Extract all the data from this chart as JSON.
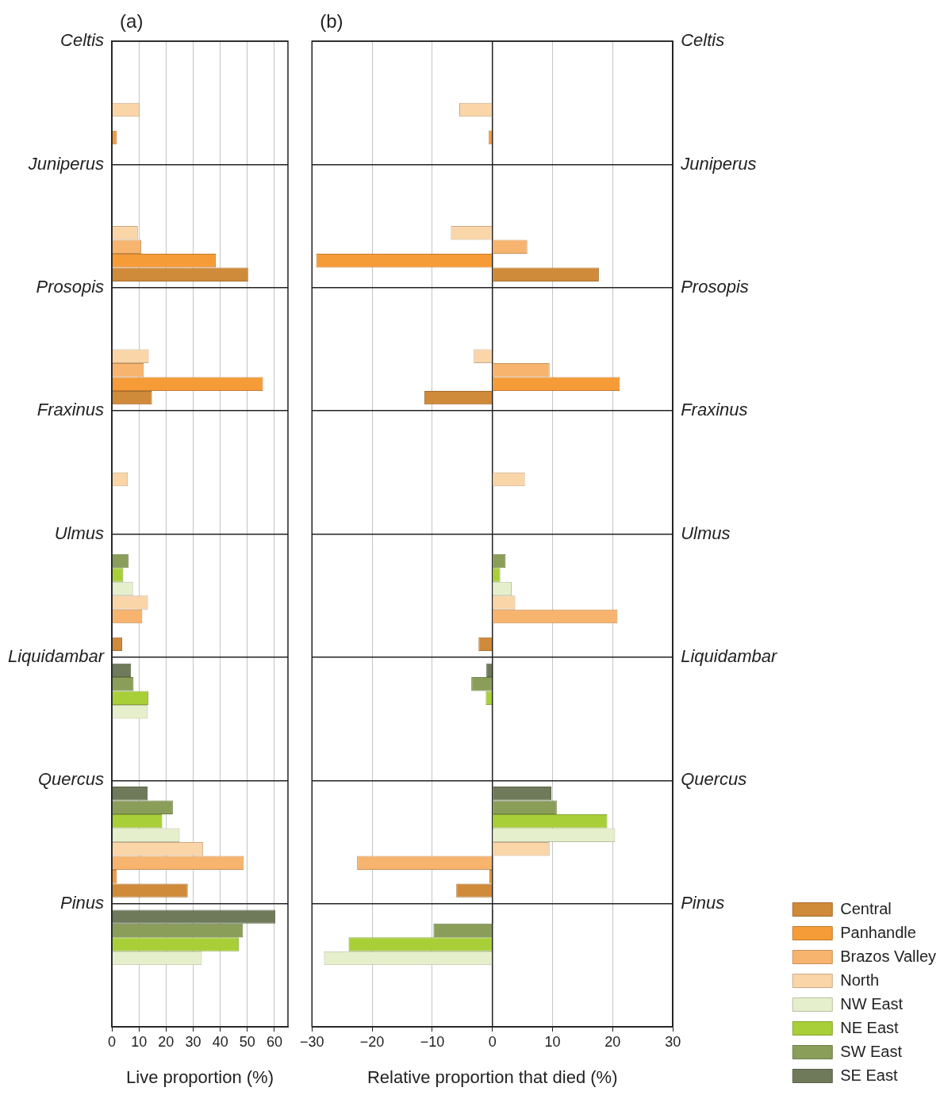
{
  "chart_data": [
    {
      "type": "bar",
      "orientation": "horizontal",
      "title": "(a)",
      "xlabel": "Live proportion (%)",
      "categories": [
        "Celtis",
        "Juniperus",
        "Prosopis",
        "Fraxinus",
        "Ulmus",
        "Liquidambar",
        "Quercus",
        "Pinus"
      ],
      "series": [
        {
          "color": "#cf8a3a",
          "values": [
            null,
            50.3,
            14.8,
            null,
            3.8,
            null,
            28,
            null
          ]
        },
        {
          "color": "#f59b38",
          "values": [
            1.7,
            38.4,
            55.8,
            null,
            null,
            null,
            1.7,
            null
          ]
        },
        {
          "color": "#f7b46e",
          "values": [
            null,
            10.8,
            11.8,
            null,
            11.2,
            null,
            48.7,
            null
          ]
        },
        {
          "color": "#fad5a8",
          "values": [
            10.2,
            9.6,
            13.6,
            5.9,
            13.3,
            null,
            33.7,
            null
          ]
        },
        {
          "color": "#e6efcc",
          "values": [
            null,
            null,
            null,
            null,
            7.8,
            13.1,
            25,
            33.2
          ]
        },
        {
          "color": "#a8cf38",
          "values": [
            null,
            null,
            null,
            null,
            4.2,
            13.5,
            18.6,
            46.9
          ]
        },
        {
          "color": "#8a9e5a",
          "values": [
            null,
            null,
            null,
            null,
            6.1,
            8,
            22.5,
            48.4
          ]
        },
        {
          "color": "#6e7a5a",
          "values": [
            null,
            null,
            null,
            null,
            null,
            7.1,
            13.2,
            60.3
          ]
        }
      ],
      "xlim": [
        0,
        65
      ],
      "xticks": [
        0,
        10,
        20,
        30,
        40,
        50,
        60
      ],
      "grid": true,
      "legend": false
    },
    {
      "type": "bar",
      "orientation": "horizontal",
      "title": "(b)",
      "xlabel": "Relative proportion that died (%)",
      "categories": [
        "Celtis",
        "Juniperus",
        "Prosopis",
        "Fraxinus",
        "Ulmus",
        "Liquidambar",
        "Quercus",
        "Pinus"
      ],
      "series": [
        {
          "name": "Central",
          "color": "#cf8a3a",
          "values": [
            null,
            17.7,
            -11.3,
            null,
            -2.3,
            null,
            -6,
            null
          ]
        },
        {
          "name": "Panhandle",
          "color": "#f59b38",
          "values": [
            -0.6,
            -29.3,
            21.2,
            null,
            null,
            null,
            -0.5,
            null
          ]
        },
        {
          "name": "Brazos Valley",
          "color": "#f7b46e",
          "values": [
            null,
            5.8,
            9.5,
            null,
            20.8,
            null,
            -22.5,
            null
          ]
        },
        {
          "name": "North",
          "color": "#fad5a8",
          "values": [
            -5.5,
            -6.9,
            -3.1,
            5.4,
            3.8,
            null,
            9.5,
            null
          ]
        },
        {
          "name": "NW East",
          "color": "#e6efcc",
          "values": [
            null,
            null,
            null,
            null,
            3.2,
            -0.2,
            20.4,
            -28
          ]
        },
        {
          "name": "NE East",
          "color": "#a8cf38",
          "values": [
            null,
            null,
            null,
            null,
            1.3,
            -1.1,
            19.1,
            -23.9
          ]
        },
        {
          "name": "SW East",
          "color": "#8a9e5a",
          "values": [
            null,
            null,
            null,
            null,
            2.2,
            -3.5,
            10.7,
            -9.8
          ]
        },
        {
          "name": "SE East",
          "color": "#6e7a5a",
          "values": [
            null,
            null,
            null,
            null,
            null,
            -1.0,
            9.8,
            0.2
          ]
        }
      ],
      "xlim": [
        -30,
        30
      ],
      "xticks": [
        {
          "value": -30,
          "label": "−30"
        },
        {
          "value": -20,
          "label": "−20"
        },
        {
          "value": -10,
          "label": "−10"
        },
        0,
        10,
        20,
        30
      ],
      "ref_lines": [
        {
          "axis": "x",
          "value": 0
        }
      ],
      "grid": true,
      "legend": "bottom right"
    }
  ]
}
